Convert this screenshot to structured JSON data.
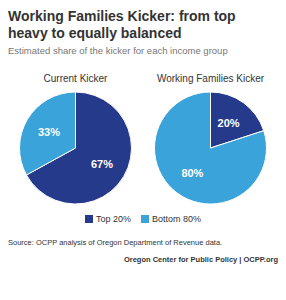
{
  "title": "Working Families Kicker: from top heavy to equally balanced",
  "subtitle": "Estimated share of the kicker for each income group",
  "source": "Source: OCPP analysis of Oregon Department of Revenue data.",
  "credit": "Oregon Center for Public Policy | OCPP.org",
  "legend": "bottom",
  "chart_data": [
    {
      "type": "pie",
      "title": "Current Kicker",
      "categories": [
        "Top 20%",
        "Bottom 80%"
      ],
      "values": [
        67,
        33
      ],
      "value_labels": [
        "67%",
        "33%"
      ],
      "colors": [
        "#263a8c",
        "#3aa3da"
      ],
      "data_labels": true
    },
    {
      "type": "pie",
      "title": "Working Families Kicker",
      "categories": [
        "Top 20%",
        "Bottom 80%"
      ],
      "values": [
        20,
        80
      ],
      "value_labels": [
        "20%",
        "80%"
      ],
      "colors": [
        "#263a8c",
        "#3aa3da"
      ],
      "data_labels": true
    }
  ]
}
